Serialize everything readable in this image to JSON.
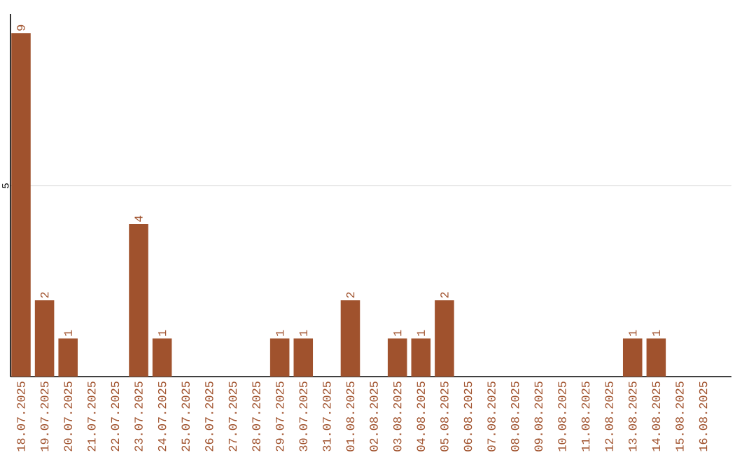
{
  "chart_data": {
    "type": "bar",
    "categories": [
      "18.07.2025",
      "19.07.2025",
      "20.07.2025",
      "21.07.2025",
      "22.07.2025",
      "23.07.2025",
      "24.07.2025",
      "25.07.2025",
      "26.07.2025",
      "27.07.2025",
      "28.07.2025",
      "29.07.2025",
      "30.07.2025",
      "31.07.2025",
      "01.08.2025",
      "02.08.2025",
      "03.08.2025",
      "04.08.2025",
      "05.08.2025",
      "06.08.2025",
      "07.08.2025",
      "08.08.2025",
      "09.08.2025",
      "10.08.2025",
      "11.08.2025",
      "12.08.2025",
      "13.08.2025",
      "14.08.2025",
      "15.08.2025",
      "16.08.2025"
    ],
    "values": [
      9,
      2,
      1,
      0,
      0,
      4,
      1,
      0,
      0,
      0,
      0,
      1,
      1,
      0,
      2,
      0,
      1,
      1,
      2,
      0,
      0,
      0,
      0,
      0,
      0,
      0,
      1,
      1,
      0,
      0
    ],
    "value_labels": [
      "9",
      "2",
      "1",
      null,
      null,
      "4",
      "1",
      null,
      null,
      null,
      null,
      "1",
      "1",
      null,
      "2",
      null,
      "1",
      "1",
      "2",
      null,
      null,
      null,
      null,
      null,
      null,
      null,
      "1",
      "1",
      null,
      null
    ],
    "color": "#a0522d",
    "ylim": [
      0,
      9.5
    ],
    "yticks": [
      5
    ],
    "grid": "y"
  }
}
